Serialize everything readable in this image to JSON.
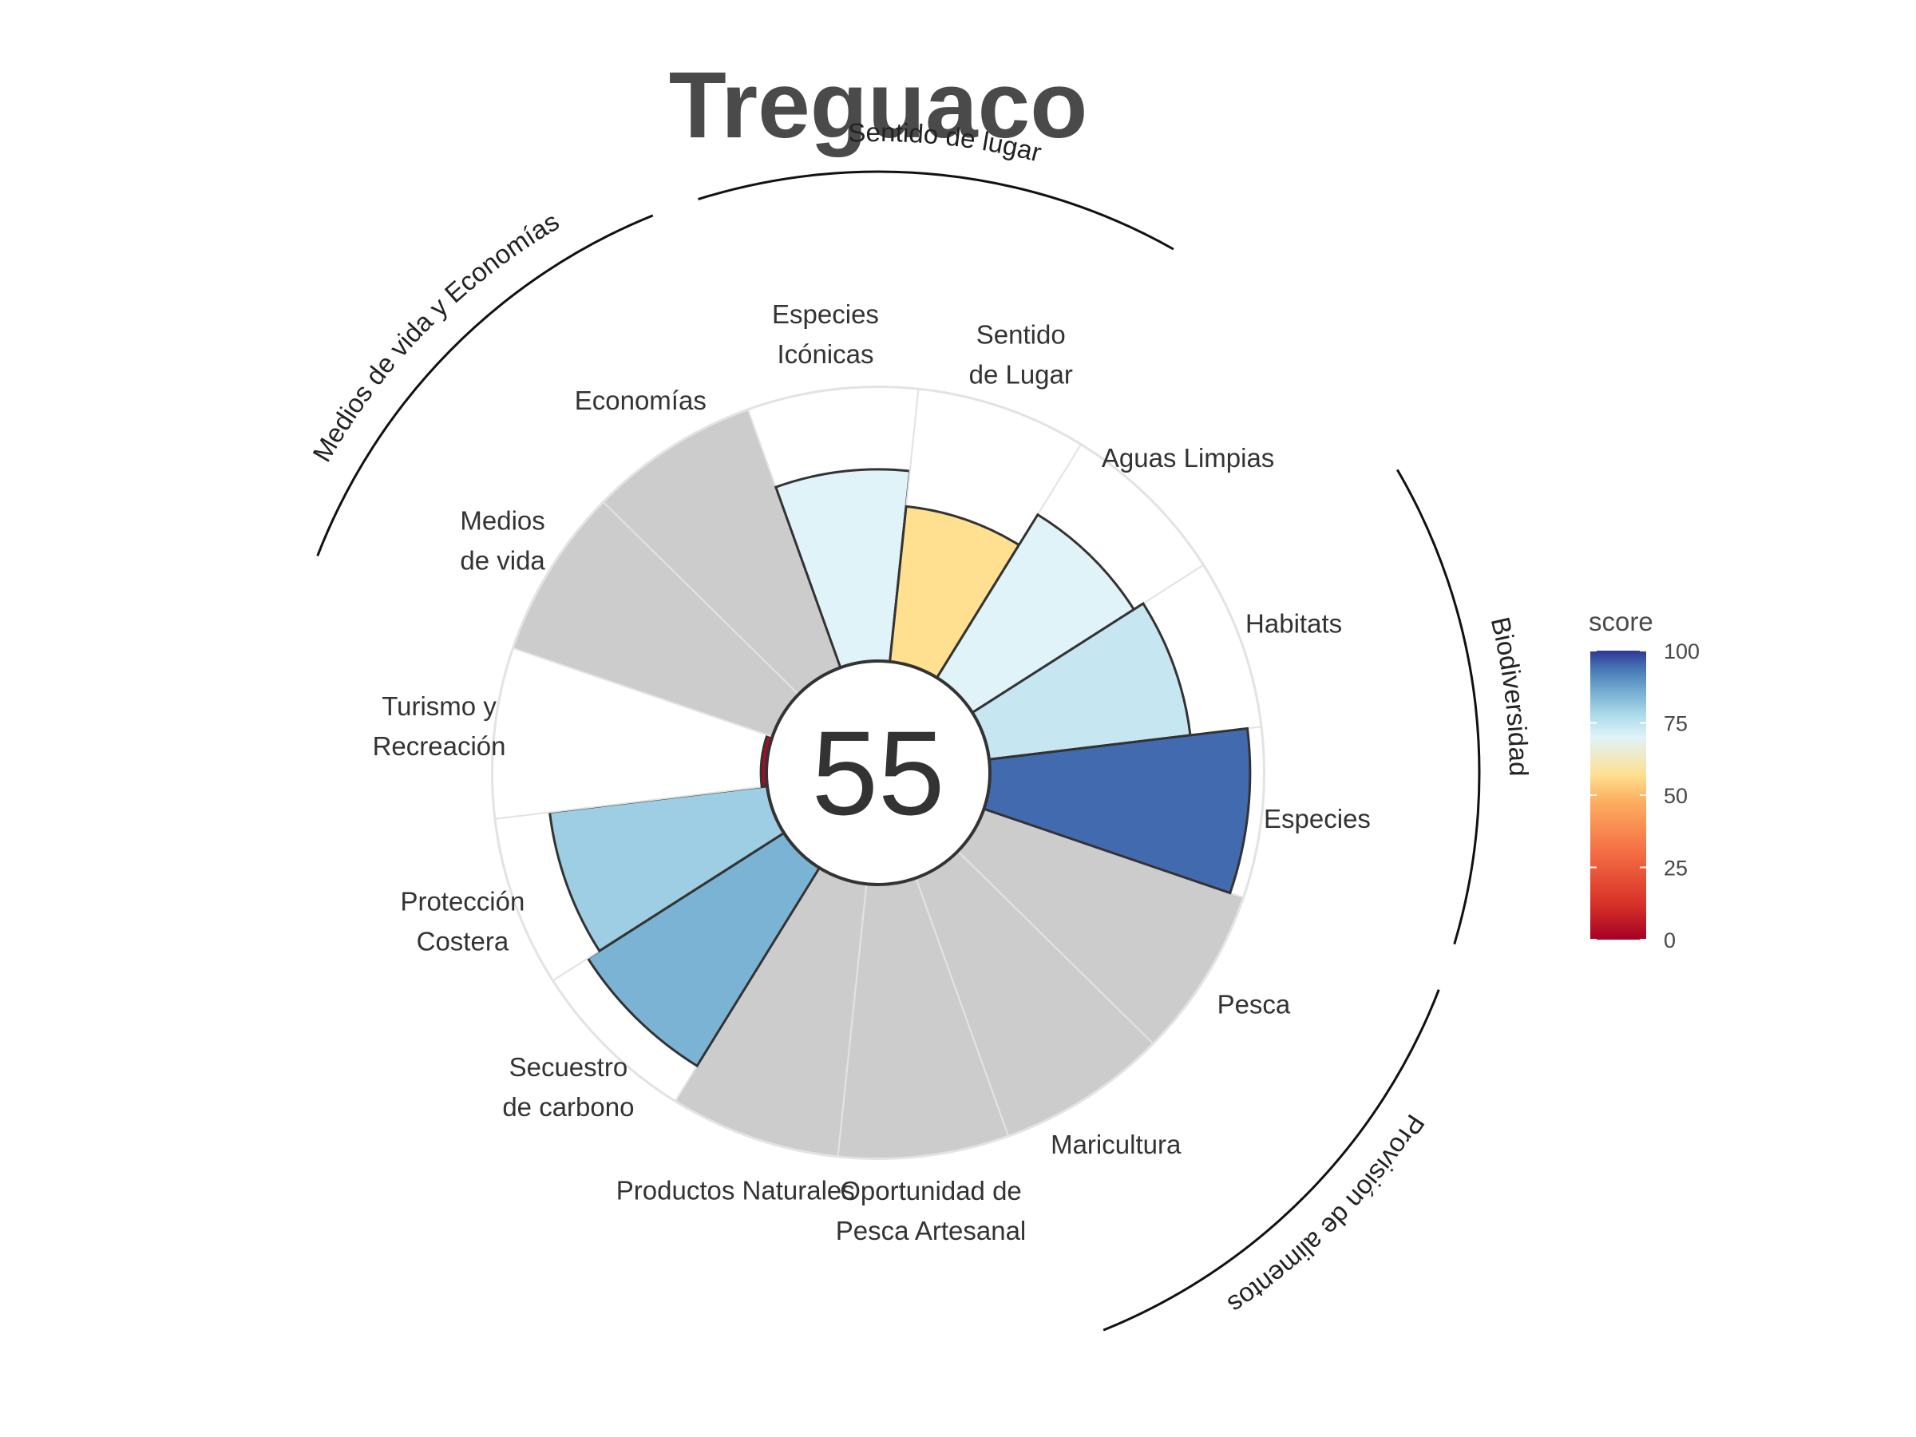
{
  "chart_data": {
    "type": "polar-bar",
    "title": "Treguaco",
    "center_value": "55",
    "petals": [
      {
        "label_lines": [
          "Pesca"
        ],
        "score": null,
        "group": "Provisión de alimentos"
      },
      {
        "label_lines": [
          "Maricultura"
        ],
        "score": null,
        "group": "Provisión de alimentos"
      },
      {
        "label_lines": [
          "Oportunidad de",
          "Pesca Artesanal"
        ],
        "score": null,
        "group": ""
      },
      {
        "label_lines": [
          "Productos Naturales"
        ],
        "score": null,
        "group": ""
      },
      {
        "label_lines": [
          "Secuestro",
          "de carbono"
        ],
        "score": 85,
        "group": ""
      },
      {
        "label_lines": [
          "Protección",
          "Costera"
        ],
        "score": 80,
        "group": ""
      },
      {
        "label_lines": [
          "Turismo y",
          "Recreación"
        ],
        "score": 2,
        "group": ""
      },
      {
        "label_lines": [
          "Medios",
          "de vida"
        ],
        "score": null,
        "group": "Medios de vida y Economías"
      },
      {
        "label_lines": [
          "Economías"
        ],
        "score": null,
        "group": "Medios de vida y Economías"
      },
      {
        "label_lines": [
          "Especies",
          "Icónicas"
        ],
        "score": 70,
        "group": "Sentido de lugar"
      },
      {
        "label_lines": [
          "Sentido",
          "de Lugar"
        ],
        "score": 57,
        "group": "Sentido de lugar"
      },
      {
        "label_lines": [
          "Aguas Limpias"
        ],
        "score": 70,
        "group": ""
      },
      {
        "label_lines": [
          "Habitats"
        ],
        "score": 74,
        "group": "Biodiversidad"
      },
      {
        "label_lines": [
          "Especies"
        ],
        "score": 95,
        "group": "Biodiversidad"
      }
    ],
    "groups": [
      "Provisión de alimentos",
      "Biodiversidad",
      "Sentido de lugar",
      "Medios de vida y Economías"
    ],
    "legend": {
      "title": "score",
      "ticks": [
        "100",
        "75",
        "50",
        "25",
        "0"
      ]
    },
    "colors": {
      "missing": "#cccccc",
      "scale": [
        "#a50026",
        "#d73027",
        "#f46d43",
        "#fdae61",
        "#fee090",
        "#e0f3f8",
        "#abd9e9",
        "#74add1",
        "#4575b4",
        "#313695"
      ]
    }
  }
}
